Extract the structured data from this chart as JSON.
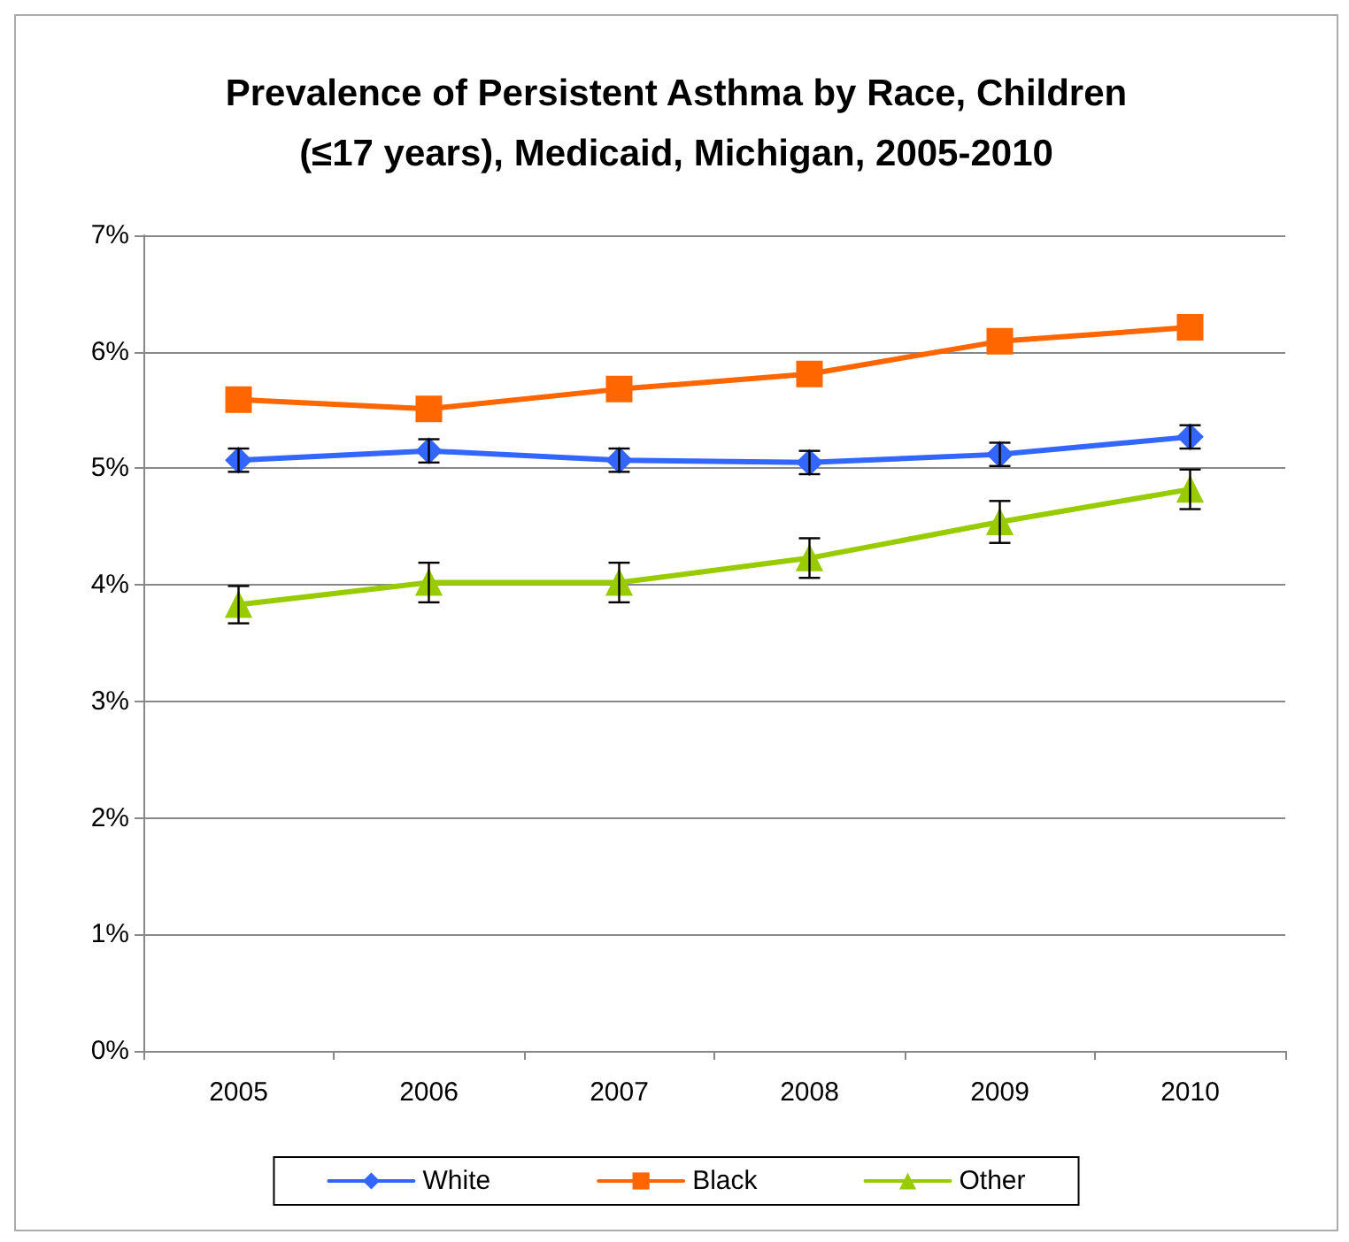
{
  "chart_data": {
    "type": "line",
    "title": "Prevalence of Persistent Asthma by Race, Children\n(≤17 years), Medicaid, Michigan, 2005-2010",
    "categories": [
      "2005",
      "2006",
      "2007",
      "2008",
      "2009",
      "2010"
    ],
    "series": [
      {
        "name": "White",
        "color": "#3366ff",
        "marker": "diamond",
        "values": [
          5.07,
          5.15,
          5.07,
          5.05,
          5.12,
          5.27
        ],
        "errors": [
          0.1,
          0.1,
          0.1,
          0.1,
          0.1,
          0.1
        ]
      },
      {
        "name": "Black",
        "color": "#ff6600",
        "marker": "square",
        "values": [
          5.59,
          5.51,
          5.68,
          5.81,
          6.09,
          6.21
        ]
      },
      {
        "name": "Other",
        "color": "#99cc00",
        "marker": "triangle",
        "values": [
          3.83,
          4.02,
          4.02,
          4.23,
          4.54,
          4.82
        ],
        "errors": [
          0.16,
          0.17,
          0.17,
          0.17,
          0.18,
          0.17
        ]
      }
    ],
    "ylim": [
      0,
      7
    ],
    "yticks": [
      {
        "value": 0,
        "label": "0%"
      },
      {
        "value": 1,
        "label": "1%"
      },
      {
        "value": 2,
        "label": "2%"
      },
      {
        "value": 3,
        "label": "3%"
      },
      {
        "value": 4,
        "label": "4%"
      },
      {
        "value": 5,
        "label": "5%"
      },
      {
        "value": 6,
        "label": "6%"
      },
      {
        "value": 7,
        "label": "7%"
      }
    ],
    "grid": "y",
    "legend": "bottom",
    "line_style": "solid"
  }
}
